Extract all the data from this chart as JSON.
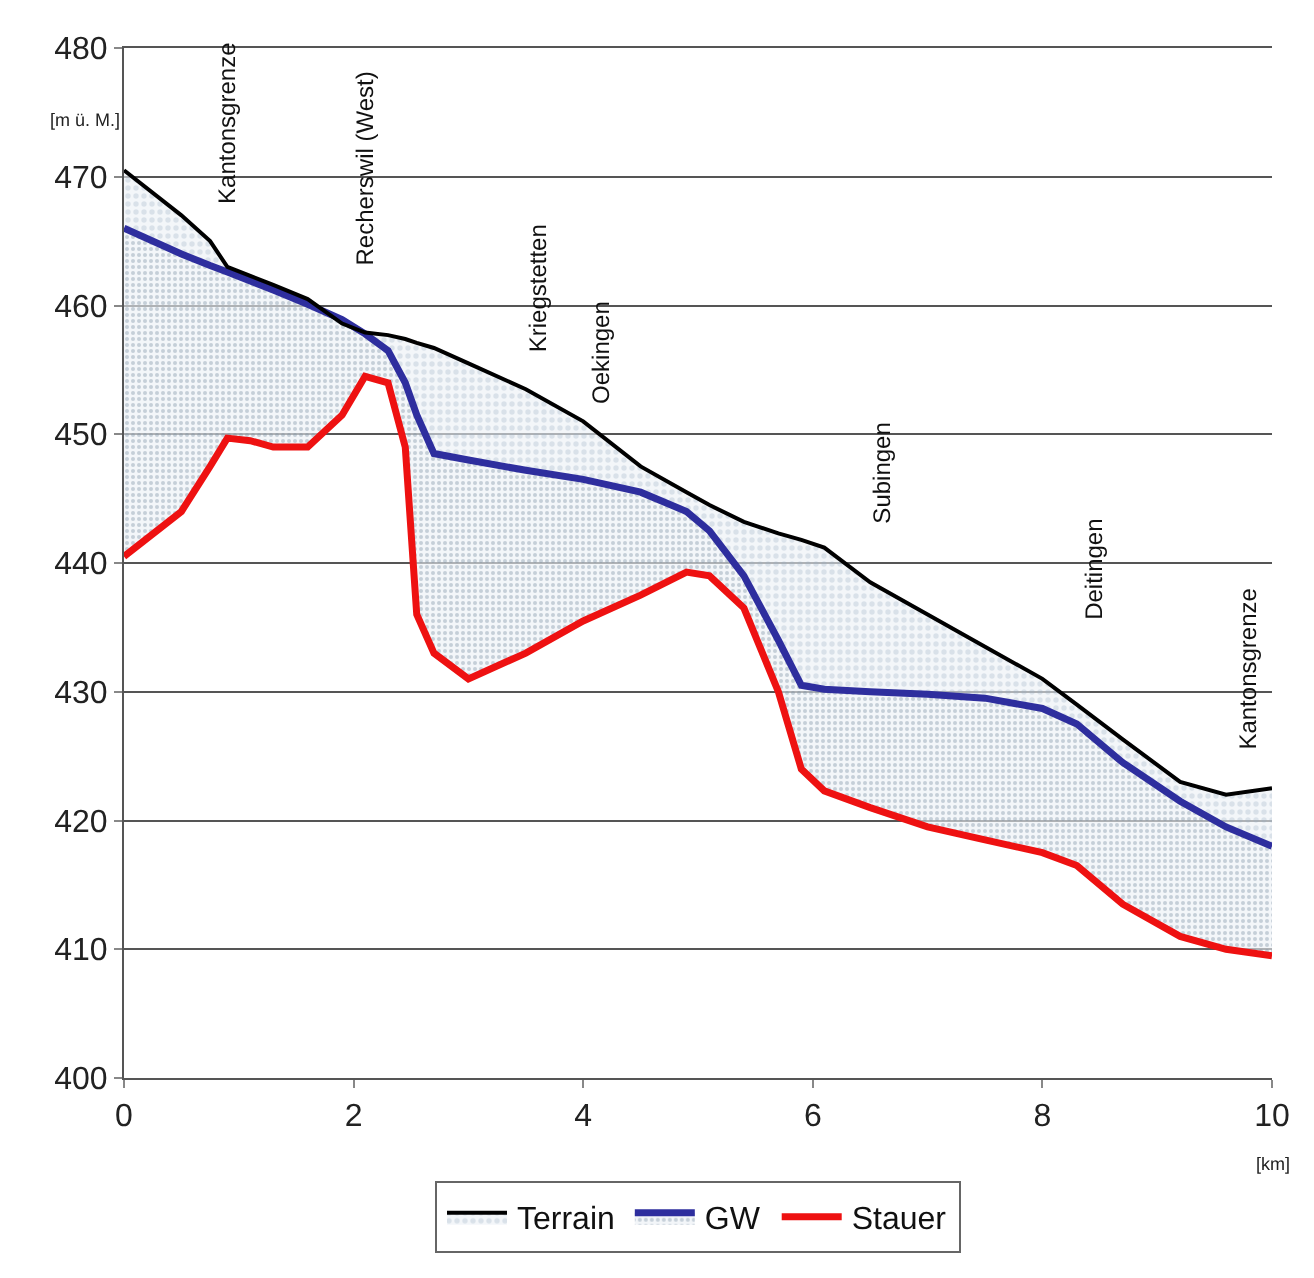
{
  "chart_data": {
    "type": "line",
    "xlabel": "[km]",
    "ylabel": "[m ü. M.]",
    "xlim": [
      0,
      10
    ],
    "xticks": [
      0,
      2,
      4,
      6,
      8,
      10
    ],
    "ylim": [
      400,
      480
    ],
    "yticks": [
      400,
      410,
      420,
      430,
      440,
      450,
      460,
      470,
      480
    ],
    "grid": "y",
    "x": [
      0,
      0.5,
      0.75,
      0.9,
      1.1,
      1.3,
      1.6,
      1.9,
      2.1,
      2.3,
      2.45,
      2.55,
      2.7,
      3.0,
      3.5,
      4.0,
      4.5,
      4.9,
      5.1,
      5.4,
      5.7,
      5.9,
      6.1,
      6.5,
      7.0,
      7.5,
      8.0,
      8.3,
      8.7,
      9.2,
      9.6,
      10
    ],
    "legend": "bottom",
    "marker": "none",
    "line_style": "solid",
    "series": [
      {
        "name": "Terrain",
        "type": "area",
        "color": "#000000",
        "values": [
          470.5,
          467,
          465,
          463,
          462.3,
          461.6,
          460.5,
          458.6,
          457.9,
          457.7,
          457.4,
          457.1,
          456.7,
          455.5,
          453.5,
          451,
          447.5,
          445.5,
          444.5,
          443.2,
          442.3,
          441.8,
          441.2,
          438.5,
          436,
          433.5,
          431,
          429,
          426.3,
          423,
          422,
          422.5
        ]
      },
      {
        "name": "GW",
        "type": "area",
        "color": "#2e2e9e",
        "values": [
          466,
          464,
          463.1,
          462.6,
          461.9,
          461.2,
          460.1,
          458.9,
          457.8,
          456.5,
          454,
          451.5,
          448.5,
          448,
          447.2,
          446.5,
          445.5,
          444,
          442.5,
          439,
          434,
          430.5,
          430.2,
          430,
          429.8,
          429.5,
          428.7,
          427.5,
          424.5,
          421.5,
          419.5,
          418
        ]
      },
      {
        "name": "Stauer",
        "color": "#ee1111",
        "values": [
          440.5,
          444,
          447.5,
          449.7,
          449.5,
          449,
          449,
          451.5,
          454.5,
          454,
          449,
          436,
          433,
          431,
          433,
          435.5,
          437.5,
          439.3,
          439,
          436.5,
          430,
          424,
          422.3,
          421,
          419.5,
          418.5,
          417.5,
          416.5,
          413.5,
          411,
          410,
          409.5
        ]
      }
    ],
    "annotations": [
      "Kantonsgrenze",
      "Recherswil (West)",
      "Kriegstetten",
      "Oekingen",
      "Subingen",
      "Deitingen",
      "Kantonsgrenze"
    ]
  }
}
